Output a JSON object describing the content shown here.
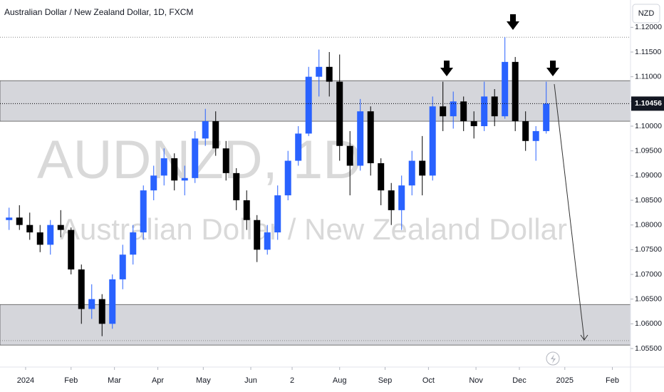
{
  "chart_data": {
    "type": "candlestick",
    "title": "Australian Dollar / New Zealand Dollar, 1D, FXCM",
    "watermark_symbol": "AUDNZD, 1D",
    "watermark_name": "Australian Dollar / New Zealand Dollar",
    "currency": "NZD",
    "up_color": "#2962ff",
    "down_color": "#000000",
    "x": [
      -8,
      -3,
      2,
      7,
      12,
      17,
      22,
      27,
      32,
      37,
      42,
      47,
      52,
      57,
      62,
      67,
      72,
      77,
      82,
      87,
      92,
      97,
      102,
      107,
      112,
      117,
      122,
      127,
      132,
      137,
      142,
      147,
      152,
      157,
      162,
      167,
      172,
      177,
      182,
      187,
      192,
      197,
      202,
      207,
      212,
      217,
      222,
      227,
      232,
      237,
      242,
      247,
      252
    ],
    "open": [
      1.081,
      1.0815,
      1.08,
      1.0785,
      1.076,
      1.08,
      1.079,
      1.071,
      1.063,
      1.065,
      1.06,
      1.069,
      1.074,
      1.0785,
      1.087,
      1.09,
      1.0935,
      1.089,
      1.0895,
      1.0975,
      1.101,
      1.0955,
      1.0905,
      1.085,
      1.081,
      1.075,
      1.0785,
      1.086,
      1.093,
      1.0985,
      1.11,
      1.112,
      1.109,
      1.096,
      1.092,
      1.103,
      1.0925,
      1.087,
      1.083,
      1.088,
      1.093,
      1.09,
      1.104,
      1.102,
      1.105,
      1.101,
      1.1,
      1.106,
      1.102,
      1.113,
      1.101,
      1.097,
      1.099
    ],
    "high": [
      1.0835,
      1.084,
      1.0825,
      1.08,
      1.081,
      1.083,
      1.0795,
      1.072,
      1.068,
      1.066,
      1.07,
      1.076,
      1.08,
      1.088,
      1.092,
      1.0955,
      1.0945,
      1.092,
      1.099,
      1.1035,
      1.103,
      1.097,
      1.0915,
      1.087,
      1.082,
      1.08,
      1.088,
      1.095,
      1.1,
      1.112,
      1.1155,
      1.115,
      1.1145,
      1.099,
      1.1055,
      1.104,
      1.0935,
      1.0885,
      1.09,
      1.095,
      1.098,
      1.106,
      1.109,
      1.107,
      1.106,
      1.103,
      1.109,
      1.1075,
      1.118,
      1.114,
      1.103,
      1.1,
      1.109
    ],
    "low": [
      1.079,
      1.079,
      1.077,
      1.0745,
      1.074,
      1.0775,
      1.07,
      1.06,
      1.061,
      1.0575,
      1.059,
      1.067,
      1.072,
      1.077,
      1.085,
      1.088,
      1.087,
      1.086,
      1.0885,
      1.096,
      1.094,
      1.089,
      1.083,
      1.079,
      1.0725,
      1.074,
      1.077,
      1.085,
      1.092,
      1.098,
      1.106,
      1.106,
      1.093,
      1.086,
      1.091,
      1.09,
      1.084,
      1.08,
      1.079,
      1.086,
      1.086,
      1.089,
      1.099,
      1.0995,
      1.099,
      1.0975,
      1.099,
      1.1,
      1.1015,
      1.099,
      1.095,
      1.093,
      1.0985
    ],
    "close": [
      1.0815,
      1.08,
      1.0785,
      1.076,
      1.08,
      1.079,
      1.071,
      1.063,
      1.065,
      1.06,
      1.069,
      1.074,
      1.0785,
      1.087,
      1.09,
      1.0935,
      1.089,
      1.0895,
      1.0975,
      1.101,
      1.0955,
      1.0905,
      1.085,
      1.081,
      1.075,
      1.0785,
      1.086,
      1.093,
      1.0985,
      1.11,
      1.112,
      1.109,
      1.096,
      1.092,
      1.103,
      1.0925,
      1.087,
      1.083,
      1.088,
      1.093,
      1.09,
      1.104,
      1.102,
      1.105,
      1.101,
      1.1,
      1.106,
      1.102,
      1.113,
      1.101,
      1.097,
      1.099,
      1.10456
    ],
    "last_price": 1.10456,
    "zones": [
      [
        1.1092,
        1.101
      ],
      [
        1.0639,
        1.0557
      ]
    ],
    "dotted_levels": [
      1.118,
      1.0566
    ],
    "xlim": [
      -12.4,
      292.8
    ],
    "xticks": [
      {
        "value": 0,
        "label": "2024"
      },
      {
        "value": 22,
        "label": "Feb"
      },
      {
        "value": 43,
        "label": "Mar"
      },
      {
        "value": 64,
        "label": "Apr"
      },
      {
        "value": 86,
        "label": "May"
      },
      {
        "value": 109,
        "label": "Jun"
      },
      {
        "value": 129,
        "label": "2"
      },
      {
        "value": 152,
        "label": "Aug"
      },
      {
        "value": 174,
        "label": "Sep"
      },
      {
        "value": 195,
        "label": "Oct"
      },
      {
        "value": 218,
        "label": "Nov"
      },
      {
        "value": 239,
        "label": "Dec"
      },
      {
        "value": 261,
        "label": "2025"
      },
      {
        "value": 284,
        "label": "Feb"
      }
    ],
    "ylim": [
      1.05125,
      1.12553
    ],
    "yticks": [
      {
        "value": 1.055,
        "label": "1.05500"
      },
      {
        "value": 1.06,
        "label": "1.06000"
      },
      {
        "value": 1.065,
        "label": "1.06500"
      },
      {
        "value": 1.07,
        "label": "1.07000"
      },
      {
        "value": 1.075,
        "label": "1.07500"
      },
      {
        "value": 1.08,
        "label": "1.08000"
      },
      {
        "value": 1.085,
        "label": "1.08500"
      },
      {
        "value": 1.09,
        "label": "1.09000"
      },
      {
        "value": 1.095,
        "label": "1.09500"
      },
      {
        "value": 1.1,
        "label": "1.10000"
      },
      {
        "value": 1.105,
        "label": "1.10500"
      },
      {
        "value": 1.11,
        "label": "1.11000"
      },
      {
        "value": 1.115,
        "label": "1.11500"
      },
      {
        "value": 1.12,
        "label": "1.12000"
      }
    ]
  }
}
